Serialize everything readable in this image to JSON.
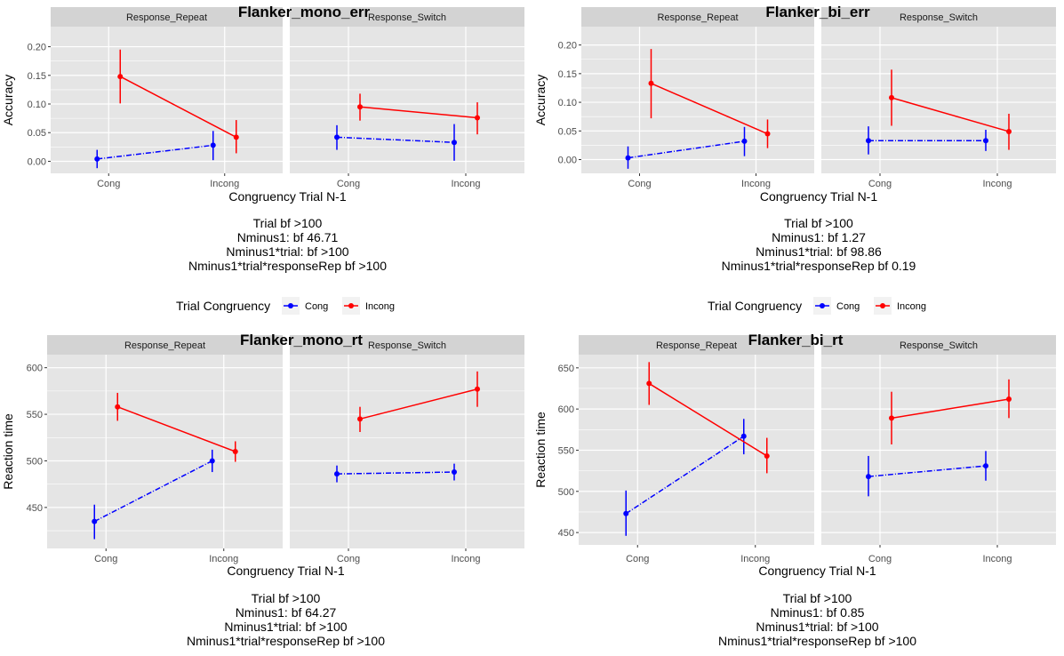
{
  "colors": {
    "panel_bg": "#e5e5e5",
    "strip_bg": "#d3d3d3",
    "grid": "#ffffff",
    "Cong": "#0000ff",
    "Incong": "#ff0000"
  },
  "legend": {
    "title": "Trial Congruency",
    "items": [
      {
        "label": "Cong",
        "color": "#0000ff"
      },
      {
        "label": "Incong",
        "color": "#ff0000"
      }
    ]
  },
  "chart_data": [
    {
      "type": "line",
      "title": "Flanker_mono_err",
      "xlabel": "Congruency Trial N-1",
      "ylabel": "Accuracy",
      "categories": [
        "Cong",
        "Incong"
      ],
      "facets": [
        "Response_Repeat",
        "Response_Switch"
      ],
      "yticks": [
        0.0,
        0.05,
        0.1,
        0.15,
        0.2
      ],
      "ytick_labels": [
        "0.00",
        "0.05",
        "0.10",
        "0.15",
        "0.20"
      ],
      "ylim": [
        -0.021,
        0.235
      ],
      "series": [
        {
          "name": "Cong",
          "facet": "Response_Repeat",
          "values": [
            0.004,
            0.028
          ],
          "lo": [
            -0.012,
            0.002
          ],
          "hi": [
            0.02,
            0.053
          ]
        },
        {
          "name": "Incong",
          "facet": "Response_Repeat",
          "values": [
            0.148,
            0.042
          ],
          "lo": [
            0.101,
            0.014
          ],
          "hi": [
            0.195,
            0.072
          ]
        },
        {
          "name": "Cong",
          "facet": "Response_Switch",
          "values": [
            0.042,
            0.033
          ],
          "lo": [
            0.02,
            0.001
          ],
          "hi": [
            0.063,
            0.065
          ]
        },
        {
          "name": "Incong",
          "facet": "Response_Switch",
          "values": [
            0.095,
            0.076
          ],
          "lo": [
            0.071,
            0.047
          ],
          "hi": [
            0.118,
            0.103
          ]
        }
      ],
      "caption": [
        "Trial bf >100",
        "Nminus1: bf 46.71",
        "Nminus1*trial: bf >100",
        "Nminus1*trial*responseRep bf >100"
      ]
    },
    {
      "type": "line",
      "title": "Flanker_bi_err",
      "xlabel": "Congruency Trial N-1",
      "ylabel": "Accuracy",
      "categories": [
        "Cong",
        "Incong"
      ],
      "facets": [
        "Response_Repeat",
        "Response_Switch"
      ],
      "yticks": [
        0.0,
        0.05,
        0.1,
        0.15,
        0.2
      ],
      "ytick_labels": [
        "0.00",
        "0.05",
        "0.10",
        "0.15",
        "0.20"
      ],
      "ylim": [
        -0.024,
        0.232
      ],
      "series": [
        {
          "name": "Cong",
          "facet": "Response_Repeat",
          "values": [
            0.003,
            0.032
          ],
          "lo": [
            -0.016,
            0.006
          ],
          "hi": [
            0.023,
            0.057
          ]
        },
        {
          "name": "Incong",
          "facet": "Response_Repeat",
          "values": [
            0.133,
            0.045
          ],
          "lo": [
            0.072,
            0.02
          ],
          "hi": [
            0.193,
            0.07
          ]
        },
        {
          "name": "Cong",
          "facet": "Response_Switch",
          "values": [
            0.033,
            0.033
          ],
          "lo": [
            0.009,
            0.015
          ],
          "hi": [
            0.058,
            0.052
          ]
        },
        {
          "name": "Incong",
          "facet": "Response_Switch",
          "values": [
            0.108,
            0.049
          ],
          "lo": [
            0.059,
            0.017
          ],
          "hi": [
            0.157,
            0.08
          ]
        }
      ],
      "caption": [
        "Trial bf >100",
        "Nminus1: bf 1.27",
        "Nminus1*trial: bf 98.86",
        "Nminus1*trial*responseRep bf 0.19"
      ]
    },
    {
      "type": "line",
      "title": "Flanker_mono_rt",
      "xlabel": "Congruency Trial N-1",
      "ylabel": "Reaction time",
      "categories": [
        "Cong",
        "Incong"
      ],
      "facets": [
        "Response_Repeat",
        "Response_Switch"
      ],
      "yticks": [
        450,
        500,
        550,
        600
      ],
      "ytick_labels": [
        "450",
        "500",
        "550",
        "600"
      ],
      "ylim": [
        406,
        614
      ],
      "series": [
        {
          "name": "Cong",
          "facet": "Response_Repeat",
          "values": [
            435,
            500
          ],
          "lo": [
            416,
            488
          ],
          "hi": [
            453,
            512
          ]
        },
        {
          "name": "Incong",
          "facet": "Response_Repeat",
          "values": [
            558,
            510
          ],
          "lo": [
            543,
            499
          ],
          "hi": [
            573,
            521
          ]
        },
        {
          "name": "Cong",
          "facet": "Response_Switch",
          "values": [
            486,
            488
          ],
          "lo": [
            477,
            479
          ],
          "hi": [
            495,
            497
          ]
        },
        {
          "name": "Incong",
          "facet": "Response_Switch",
          "values": [
            545,
            577
          ],
          "lo": [
            531,
            558
          ],
          "hi": [
            558,
            596
          ]
        }
      ],
      "caption": [
        "Trial bf >100",
        "Nminus1: bf 64.27",
        "Nminus1*trial: bf >100",
        "Nminus1*trial*responseRep bf >100"
      ]
    },
    {
      "type": "line",
      "title": "Flanker_bi_rt",
      "xlabel": "Congruency Trial N-1",
      "ylabel": "Reaction time",
      "categories": [
        "Cong",
        "Incong"
      ],
      "facets": [
        "Response_Repeat",
        "Response_Switch"
      ],
      "yticks": [
        450,
        500,
        550,
        600,
        650
      ],
      "ytick_labels": [
        "450",
        "500",
        "550",
        "600",
        "650"
      ],
      "ylim": [
        435,
        666
      ],
      "series": [
        {
          "name": "Cong",
          "facet": "Response_Repeat",
          "values": [
            473,
            567
          ],
          "lo": [
            446,
            545
          ],
          "hi": [
            501,
            588
          ]
        },
        {
          "name": "Incong",
          "facet": "Response_Repeat",
          "values": [
            631,
            543
          ],
          "lo": [
            605,
            522
          ],
          "hi": [
            657,
            565
          ]
        },
        {
          "name": "Cong",
          "facet": "Response_Switch",
          "values": [
            518,
            531
          ],
          "lo": [
            494,
            513
          ],
          "hi": [
            543,
            549
          ]
        },
        {
          "name": "Incong",
          "facet": "Response_Switch",
          "values": [
            589,
            612
          ],
          "lo": [
            557,
            589
          ],
          "hi": [
            621,
            636
          ]
        }
      ],
      "caption": [
        "Trial bf >100",
        "Nminus1: bf 0.85",
        "Nminus1*trial: bf >100",
        "Nminus1*trial*responseRep bf >100"
      ]
    }
  ]
}
